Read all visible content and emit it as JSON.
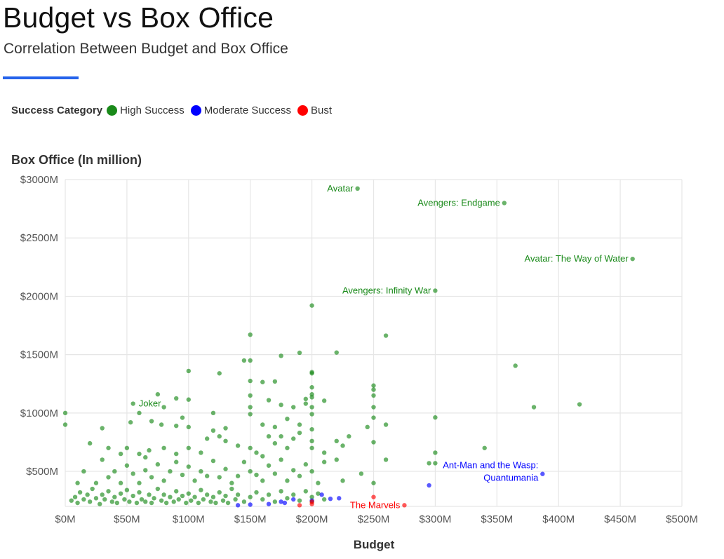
{
  "header": {
    "title": "Budget vs Box Office",
    "subtitle": "Correlation Between Budget and Box Office"
  },
  "legend": {
    "title": "Success Category",
    "items": [
      {
        "label": "High Success",
        "color": "#1a8a1a"
      },
      {
        "label": "Moderate Success",
        "color": "#0000ff"
      },
      {
        "label": "Bust",
        "color": "#ff0000"
      }
    ]
  },
  "chart_data": {
    "type": "scatter",
    "title": "Budget vs Box Office",
    "subtitle": "Correlation Between Budget and Box Office",
    "xlabel": "Budget",
    "ylabel": "Box Office (In million)",
    "xlim": [
      0,
      500
    ],
    "ylim": [
      200,
      3000
    ],
    "x_ticks": [
      0,
      50,
      100,
      150,
      200,
      250,
      300,
      350,
      400,
      450,
      500
    ],
    "x_tick_labels": [
      "$0M",
      "$50M",
      "$100M",
      "$150M",
      "$200M",
      "$250M",
      "$300M",
      "$350M",
      "$400M",
      "$450M",
      "$500M"
    ],
    "y_ticks": [
      500,
      1000,
      1500,
      2000,
      2500,
      3000
    ],
    "y_tick_labels": [
      "$500M",
      "$1000M",
      "$1500M",
      "$2000M",
      "$2500M",
      "$3000M"
    ],
    "grid": true,
    "legend_position": "top-left",
    "series": [
      {
        "name": "High Success",
        "color": "#1a8a1a",
        "points": [
          [
            237,
            2923
          ],
          [
            356,
            2799
          ],
          [
            460,
            2320
          ],
          [
            300,
            2048
          ],
          [
            200,
            1921
          ],
          [
            150,
            1671
          ],
          [
            260,
            1663
          ],
          [
            220,
            1518
          ],
          [
            190,
            1516
          ],
          [
            175,
            1490
          ],
          [
            145,
            1450
          ],
          [
            150,
            1450
          ],
          [
            365,
            1405
          ],
          [
            100,
            1360
          ],
          [
            200,
            1350
          ],
          [
            200,
            1340
          ],
          [
            125,
            1340
          ],
          [
            160,
            1265
          ],
          [
            150,
            1275
          ],
          [
            170,
            1270
          ],
          [
            250,
            1235
          ],
          [
            200,
            1220
          ],
          [
            250,
            1200
          ],
          [
            200,
            1160
          ],
          [
            75,
            1160
          ],
          [
            250,
            1150
          ],
          [
            150,
            1150
          ],
          [
            200,
            1135
          ],
          [
            210,
            1105
          ],
          [
            90,
            1125
          ],
          [
            165,
            1110
          ],
          [
            195,
            1120
          ],
          [
            100,
            1115
          ],
          [
            380,
            1050
          ],
          [
            417,
            1074
          ],
          [
            55,
            1080
          ],
          [
            60,
            1000
          ],
          [
            80,
            1050
          ],
          [
            120,
            1000
          ],
          [
            150,
            1050
          ],
          [
            175,
            1070
          ],
          [
            185,
            1050
          ],
          [
            195,
            1080
          ],
          [
            200,
            1050
          ],
          [
            250,
            1050
          ],
          [
            0,
            1000
          ],
          [
            0,
            900
          ],
          [
            30,
            870
          ],
          [
            53,
            920
          ],
          [
            70,
            930
          ],
          [
            78,
            900
          ],
          [
            90,
            890
          ],
          [
            95,
            960
          ],
          [
            100,
            880
          ],
          [
            130,
            870
          ],
          [
            150,
            990
          ],
          [
            160,
            900
          ],
          [
            170,
            880
          ],
          [
            180,
            950
          ],
          [
            190,
            900
          ],
          [
            200,
            990
          ],
          [
            250,
            960
          ],
          [
            260,
            900
          ],
          [
            300,
            962
          ],
          [
            245,
            880
          ],
          [
            200,
            860
          ],
          [
            20,
            740
          ],
          [
            35,
            700
          ],
          [
            45,
            650
          ],
          [
            50,
            700
          ],
          [
            60,
            650
          ],
          [
            65,
            620
          ],
          [
            68,
            680
          ],
          [
            80,
            700
          ],
          [
            90,
            650
          ],
          [
            100,
            700
          ],
          [
            110,
            660
          ],
          [
            115,
            780
          ],
          [
            120,
            850
          ],
          [
            125,
            800
          ],
          [
            130,
            760
          ],
          [
            140,
            720
          ],
          [
            150,
            700
          ],
          [
            155,
            660
          ],
          [
            160,
            630
          ],
          [
            165,
            800
          ],
          [
            170,
            740
          ],
          [
            175,
            800
          ],
          [
            180,
            700
          ],
          [
            185,
            780
          ],
          [
            190,
            830
          ],
          [
            200,
            760
          ],
          [
            200,
            700
          ],
          [
            210,
            660
          ],
          [
            220,
            760
          ],
          [
            225,
            720
          ],
          [
            230,
            800
          ],
          [
            250,
            750
          ],
          [
            260,
            600
          ],
          [
            300,
            660
          ],
          [
            295,
            570
          ],
          [
            300,
            570
          ],
          [
            340,
            700
          ],
          [
            10,
            400
          ],
          [
            15,
            500
          ],
          [
            25,
            400
          ],
          [
            30,
            600
          ],
          [
            35,
            450
          ],
          [
            40,
            500
          ],
          [
            45,
            400
          ],
          [
            50,
            550
          ],
          [
            55,
            480
          ],
          [
            60,
            400
          ],
          [
            65,
            510
          ],
          [
            70,
            450
          ],
          [
            75,
            560
          ],
          [
            80,
            420
          ],
          [
            85,
            500
          ],
          [
            90,
            580
          ],
          [
            95,
            470
          ],
          [
            100,
            540
          ],
          [
            105,
            420
          ],
          [
            110,
            500
          ],
          [
            115,
            460
          ],
          [
            120,
            590
          ],
          [
            125,
            450
          ],
          [
            130,
            520
          ],
          [
            135,
            400
          ],
          [
            140,
            460
          ],
          [
            145,
            580
          ],
          [
            150,
            500
          ],
          [
            155,
            470
          ],
          [
            160,
            420
          ],
          [
            165,
            550
          ],
          [
            170,
            480
          ],
          [
            175,
            600
          ],
          [
            180,
            420
          ],
          [
            185,
            510
          ],
          [
            190,
            460
          ],
          [
            195,
            560
          ],
          [
            200,
            500
          ],
          [
            205,
            400
          ],
          [
            210,
            580
          ],
          [
            220,
            600
          ],
          [
            225,
            420
          ],
          [
            250,
            400
          ],
          [
            240,
            480
          ],
          [
            5,
            250
          ],
          [
            8,
            280
          ],
          [
            10,
            230
          ],
          [
            12,
            320
          ],
          [
            15,
            260
          ],
          [
            18,
            300
          ],
          [
            20,
            240
          ],
          [
            22,
            350
          ],
          [
            25,
            270
          ],
          [
            28,
            220
          ],
          [
            30,
            300
          ],
          [
            32,
            260
          ],
          [
            35,
            330
          ],
          [
            38,
            240
          ],
          [
            40,
            280
          ],
          [
            42,
            230
          ],
          [
            45,
            310
          ],
          [
            48,
            260
          ],
          [
            50,
            340
          ],
          [
            52,
            240
          ],
          [
            55,
            290
          ],
          [
            58,
            230
          ],
          [
            60,
            320
          ],
          [
            62,
            260
          ],
          [
            65,
            240
          ],
          [
            68,
            300
          ],
          [
            70,
            230
          ],
          [
            72,
            270
          ],
          [
            75,
            350
          ],
          [
            78,
            250
          ],
          [
            80,
            300
          ],
          [
            82,
            230
          ],
          [
            85,
            280
          ],
          [
            88,
            240
          ],
          [
            90,
            330
          ],
          [
            92,
            260
          ],
          [
            95,
            290
          ],
          [
            98,
            230
          ],
          [
            100,
            310
          ],
          [
            102,
            250
          ],
          [
            105,
            280
          ],
          [
            108,
            230
          ],
          [
            110,
            340
          ],
          [
            112,
            260
          ],
          [
            115,
            300
          ],
          [
            118,
            240
          ],
          [
            120,
            280
          ],
          [
            122,
            230
          ],
          [
            125,
            320
          ],
          [
            128,
            250
          ],
          [
            130,
            290
          ],
          [
            132,
            230
          ],
          [
            135,
            350
          ],
          [
            138,
            260
          ],
          [
            140,
            300
          ],
          [
            145,
            240
          ],
          [
            150,
            280
          ],
          [
            155,
            320
          ],
          [
            160,
            260
          ],
          [
            165,
            300
          ],
          [
            170,
            240
          ],
          [
            175,
            330
          ],
          [
            180,
            270
          ],
          [
            185,
            300
          ],
          [
            190,
            250
          ],
          [
            195,
            330
          ],
          [
            200,
            280
          ],
          [
            200,
            240
          ],
          [
            205,
            310
          ],
          [
            210,
            260
          ]
        ]
      },
      {
        "name": "Moderate Success",
        "color": "#0000ff",
        "points": [
          [
            295,
            380
          ],
          [
            387,
            478
          ],
          [
            140,
            210
          ],
          [
            150,
            215
          ],
          [
            165,
            220
          ],
          [
            175,
            240
          ],
          [
            178,
            230
          ],
          [
            185,
            260
          ],
          [
            208,
            300
          ],
          [
            215,
            265
          ],
          [
            222,
            270
          ],
          [
            200,
            250
          ]
        ]
      },
      {
        "name": "Bust",
        "color": "#ff0000",
        "points": [
          [
            275,
            210
          ],
          [
            250,
            280
          ],
          [
            190,
            210
          ],
          [
            200,
            220
          ],
          [
            200,
            240
          ]
        ]
      }
    ],
    "annotations": [
      {
        "text": "Avatar",
        "x": 237,
        "y": 2923,
        "series": "High Success"
      },
      {
        "text": "Avengers: Endgame",
        "x": 356,
        "y": 2799,
        "series": "High Success"
      },
      {
        "text": "Avatar: The Way of Water",
        "x": 460,
        "y": 2320,
        "series": "High Success"
      },
      {
        "text": "Avengers: Infinity War",
        "x": 300,
        "y": 2048,
        "series": "High Success"
      },
      {
        "text": "Joker",
        "x": 55,
        "y": 1080,
        "series": "High Success"
      },
      {
        "text": "Ant-Man and the Wasp:",
        "x": 387,
        "y": 478,
        "series": "Moderate Success"
      },
      {
        "text": "Quantumania",
        "x": 387,
        "y": 478,
        "series": "Moderate Success"
      },
      {
        "text": "The Marvels",
        "x": 275,
        "y": 210,
        "series": "Bust"
      }
    ]
  }
}
